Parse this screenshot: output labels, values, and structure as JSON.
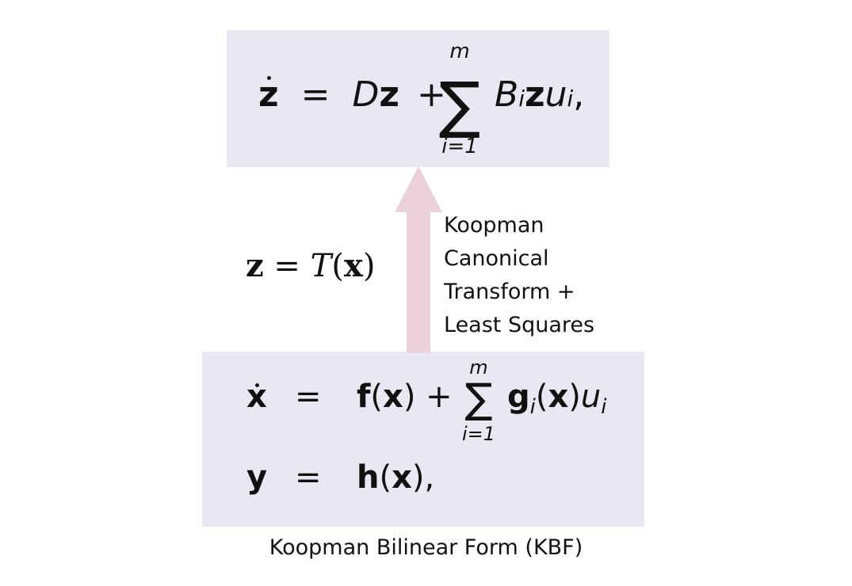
{
  "top_equation": {
    "lhs": "z",
    "equals": "=",
    "term_d": "D",
    "term_z": "z",
    "plus": "+",
    "sum_symbol": "∑",
    "sum_upper": "m",
    "sum_lower": "i=1",
    "term_b": "B",
    "term_b_sub": "i",
    "term_bz": "z",
    "term_u": "u",
    "term_u_sub": "i",
    "comma": ","
  },
  "transform": {
    "lhs": "z",
    "equals": " = ",
    "func": "T",
    "open": "(",
    "arg": "x",
    "close": ")"
  },
  "step_label": {
    "lines": [
      "Koopman",
      "Canonical",
      "Transform +",
      "Least Squares"
    ]
  },
  "bottom_equations": {
    "row1": {
      "lhs": "x",
      "equals": "=",
      "f": "f",
      "open": "(",
      "arg": "x",
      "close": ")",
      "plus": " + ",
      "sum_symbol": "∑",
      "sum_upper": "m",
      "sum_lower": "i=1",
      "g": "g",
      "g_sub": "i",
      "g_open": "(",
      "g_arg": "x",
      "g_close": ")",
      "u": "u",
      "u_sub": "i"
    },
    "row2": {
      "lhs": "y",
      "equals": "=",
      "h": "h",
      "open": "(",
      "arg": "x",
      "close": "),"
    }
  },
  "caption": "Koopman Bilinear Form (KBF)",
  "colors": {
    "box_fill": "#e8e8f2",
    "arrow_fill": "#ead1db"
  }
}
